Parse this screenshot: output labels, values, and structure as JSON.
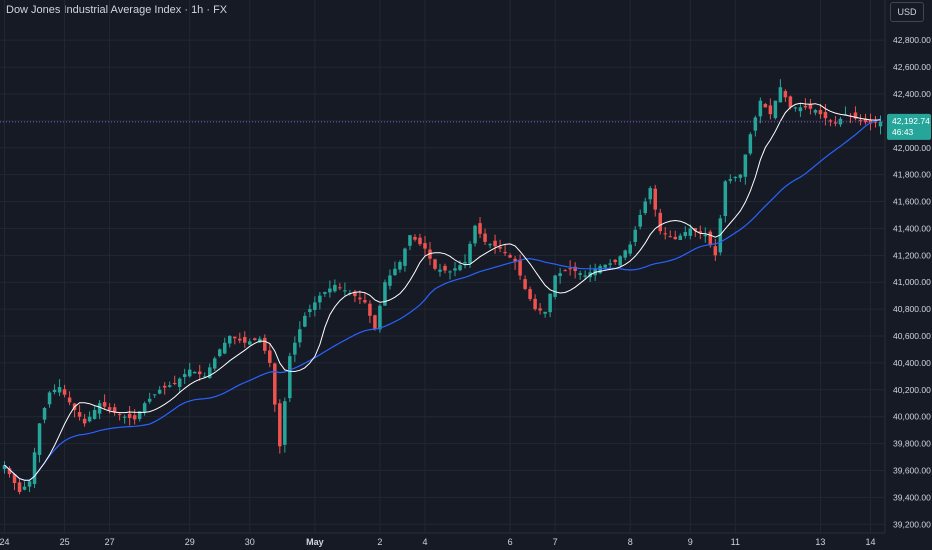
{
  "header": {
    "title": "Dow Jones Industrial Average Index · 1h · FX",
    "currency": "USD"
  },
  "last_price": {
    "value": 42192.74,
    "label": "42,192.74",
    "countdown": "46:43"
  },
  "colors": {
    "background": "#161a25",
    "grid": "#232733",
    "up": "#26a69a",
    "down": "#ef5350",
    "ma_fast": "#ffffff",
    "ma_slow": "#2962ff",
    "price_line": "#7e57c2",
    "axis_text": "#d1d4dc",
    "price_box": "#26a69a"
  },
  "chart_data": {
    "type": "candlestick",
    "title": "Dow Jones Industrial Average Index · 1h · FX",
    "timeframe": "1h",
    "ylim": [
      39150,
      42950
    ],
    "y_ticks": [
      39200,
      39400,
      39600,
      39800,
      40000,
      40200,
      40400,
      40600,
      40800,
      41000,
      41200,
      41400,
      41600,
      41800,
      42000,
      42200,
      42400,
      42600,
      42800
    ],
    "y_tick_labels": [
      "39,200.00",
      "39,400.00",
      "39,600.00",
      "39,800.00",
      "40,000.00",
      "40,200.00",
      "40,400.00",
      "40,600.00",
      "40,800.00",
      "41,000.00",
      "41,200.00",
      "41,400.00",
      "41,600.00",
      "41,800.00",
      "42,000.00",
      "42,200.00",
      "42,400.00",
      "42,600.00",
      "42,800.00"
    ],
    "x_ticks": [
      "24",
      "25",
      "27",
      "29",
      "30",
      "May",
      "2",
      "4",
      "6",
      "7",
      "8",
      "9",
      "11",
      "13",
      "14"
    ],
    "close_points": [
      {
        "bar": 0,
        "close": 39640
      },
      {
        "bar": 3,
        "close": 39440
      },
      {
        "bar": 5,
        "close": 39520
      },
      {
        "bar": 7,
        "close": 39950
      },
      {
        "bar": 9,
        "close": 40180
      },
      {
        "bar": 11,
        "close": 40220
      },
      {
        "bar": 14,
        "close": 40050
      },
      {
        "bar": 16,
        "close": 39950
      },
      {
        "bar": 19,
        "close": 40100
      },
      {
        "bar": 21,
        "close": 40050
      },
      {
        "bar": 24,
        "close": 40000
      },
      {
        "bar": 26,
        "close": 39980
      },
      {
        "bar": 28,
        "close": 40100
      },
      {
        "bar": 31,
        "close": 40200
      },
      {
        "bar": 34,
        "close": 40250
      },
      {
        "bar": 37,
        "close": 40350
      },
      {
        "bar": 40,
        "close": 40300
      },
      {
        "bar": 43,
        "close": 40500
      },
      {
        "bar": 45,
        "close": 40600
      },
      {
        "bar": 48,
        "close": 40550
      },
      {
        "bar": 51,
        "close": 40580
      },
      {
        "bar": 53,
        "close": 40400
      },
      {
        "bar": 55,
        "close": 39780
      },
      {
        "bar": 57,
        "close": 40450
      },
      {
        "bar": 60,
        "close": 40750
      },
      {
        "bar": 63,
        "close": 40900
      },
      {
        "bar": 66,
        "close": 40980
      },
      {
        "bar": 69,
        "close": 40920
      },
      {
        "bar": 72,
        "close": 40850
      },
      {
        "bar": 74,
        "close": 40650
      },
      {
        "bar": 76,
        "close": 41000
      },
      {
        "bar": 79,
        "close": 41150
      },
      {
        "bar": 81,
        "close": 41350
      },
      {
        "bar": 84,
        "close": 41250
      },
      {
        "bar": 86,
        "close": 41100
      },
      {
        "bar": 89,
        "close": 41080
      },
      {
        "bar": 92,
        "close": 41150
      },
      {
        "bar": 94,
        "close": 41420
      },
      {
        "bar": 96,
        "close": 41300
      },
      {
        "bar": 99,
        "close": 41250
      },
      {
        "bar": 102,
        "close": 41150
      },
      {
        "bar": 104,
        "close": 40950
      },
      {
        "bar": 106,
        "close": 40800
      },
      {
        "bar": 108,
        "close": 40780
      },
      {
        "bar": 110,
        "close": 41050
      },
      {
        "bar": 113,
        "close": 41100
      },
      {
        "bar": 116,
        "close": 41050
      },
      {
        "bar": 119,
        "close": 41120
      },
      {
        "bar": 122,
        "close": 41150
      },
      {
        "bar": 125,
        "close": 41280
      },
      {
        "bar": 127,
        "close": 41500
      },
      {
        "bar": 129,
        "close": 41700
      },
      {
        "bar": 131,
        "close": 41380
      },
      {
        "bar": 134,
        "close": 41320
      },
      {
        "bar": 137,
        "close": 41400
      },
      {
        "bar": 140,
        "close": 41350
      },
      {
        "bar": 142,
        "close": 41200
      },
      {
        "bar": 144,
        "close": 41750
      },
      {
        "bar": 147,
        "close": 41800
      },
      {
        "bar": 149,
        "close": 42100
      },
      {
        "bar": 151,
        "close": 42350
      },
      {
        "bar": 153,
        "close": 42250
      },
      {
        "bar": 155,
        "close": 42450
      },
      {
        "bar": 157,
        "close": 42300
      },
      {
        "bar": 160,
        "close": 42300
      },
      {
        "bar": 162,
        "close": 42280
      },
      {
        "bar": 164,
        "close": 42220
      },
      {
        "bar": 166,
        "close": 42180
      },
      {
        "bar": 168,
        "close": 42250
      },
      {
        "bar": 171,
        "close": 42200
      },
      {
        "bar": 173,
        "close": 42180
      },
      {
        "bar": 175,
        "close": 42192.74
      }
    ],
    "series": [
      {
        "name": "",
        "type": "candles"
      },
      {
        "name": "",
        "type": "moving_average_fast"
      },
      {
        "name": "",
        "type": "moving_average_slow"
      }
    ],
    "grid": true,
    "legend": "none"
  }
}
